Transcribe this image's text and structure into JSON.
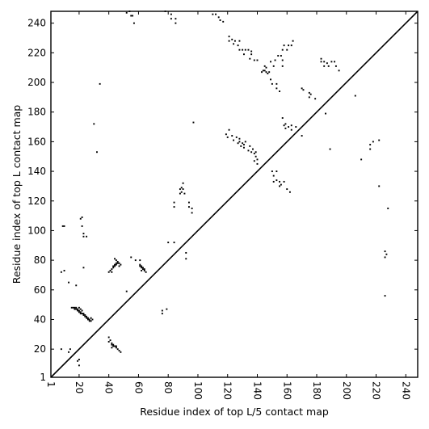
{
  "chart_data": {
    "type": "scatter",
    "title": "",
    "xlabel": "Residue index of top L/5 contact map",
    "ylabel": "Residue index of top L contact map",
    "xlim": [
      1,
      248
    ],
    "ylim": [
      1,
      248
    ],
    "xticks": [
      1,
      20,
      40,
      60,
      80,
      100,
      120,
      140,
      160,
      180,
      200,
      220,
      240
    ],
    "xtick_labels": [
      "1",
      "20",
      "40",
      "60",
      "80",
      "100",
      "120",
      "140",
      "160",
      "180",
      "200",
      "220",
      "240"
    ],
    "yticks": [
      1,
      20,
      40,
      60,
      80,
      100,
      120,
      140,
      160,
      180,
      200,
      220,
      240
    ],
    "ytick_labels": [
      "1",
      "20",
      "40",
      "60",
      "80",
      "100",
      "120",
      "140",
      "160",
      "180",
      "200",
      "220",
      "240"
    ],
    "diagonal": true,
    "grid": false,
    "marker_color": "#000000",
    "series": [
      {
        "values_note": "",
        "points": [
          [
            8,
            72
          ],
          [
            10,
            73
          ],
          [
            9,
            103
          ],
          [
            10,
            103
          ],
          [
            13,
            65
          ],
          [
            18,
            63
          ],
          [
            19,
            12
          ],
          [
            20,
            9
          ],
          [
            20,
            13
          ],
          [
            13,
            18
          ],
          [
            14,
            20
          ],
          [
            8,
            20
          ],
          [
            15,
            48
          ],
          [
            16,
            48
          ],
          [
            17,
            48
          ],
          [
            18,
            48
          ],
          [
            17,
            47
          ],
          [
            18,
            47
          ],
          [
            19,
            47
          ],
          [
            19,
            46
          ],
          [
            20,
            46
          ],
          [
            20,
            45
          ],
          [
            21,
            45
          ],
          [
            21,
            44
          ],
          [
            22,
            44
          ],
          [
            23,
            44
          ],
          [
            23,
            43
          ],
          [
            24,
            43
          ],
          [
            24,
            42
          ],
          [
            25,
            42
          ],
          [
            25,
            41
          ],
          [
            26,
            41
          ],
          [
            26,
            40
          ],
          [
            27,
            40
          ],
          [
            27,
            39
          ],
          [
            28,
            39
          ],
          [
            29,
            40
          ],
          [
            28,
            41
          ],
          [
            22,
            46
          ],
          [
            21,
            47
          ],
          [
            20,
            48
          ],
          [
            21,
            108
          ],
          [
            22,
            109
          ],
          [
            22,
            103
          ],
          [
            23,
            98
          ],
          [
            23,
            96
          ],
          [
            25,
            96
          ],
          [
            23,
            75
          ],
          [
            30,
            172
          ],
          [
            32,
            153
          ],
          [
            34,
            199
          ],
          [
            40,
            72
          ],
          [
            41,
            73
          ],
          [
            42,
            74
          ],
          [
            42,
            72
          ],
          [
            43,
            75
          ],
          [
            43,
            76
          ],
          [
            44,
            76
          ],
          [
            44,
            77
          ],
          [
            45,
            77
          ],
          [
            45,
            78
          ],
          [
            46,
            78
          ],
          [
            47,
            78
          ],
          [
            46,
            79
          ],
          [
            45,
            80
          ],
          [
            44,
            81
          ],
          [
            47,
            76
          ],
          [
            48,
            77
          ],
          [
            40,
            25
          ],
          [
            40,
            28
          ],
          [
            41,
            26
          ],
          [
            42,
            24
          ],
          [
            42,
            23
          ],
          [
            43,
            23
          ],
          [
            43,
            22
          ],
          [
            44,
            22
          ],
          [
            45,
            22
          ],
          [
            45,
            21
          ],
          [
            46,
            20
          ],
          [
            47,
            19
          ],
          [
            48,
            18
          ],
          [
            42,
            21
          ],
          [
            52,
            59
          ],
          [
            55,
            82
          ],
          [
            58,
            80
          ],
          [
            61,
            80
          ],
          [
            61,
            77
          ],
          [
            61,
            76
          ],
          [
            62,
            76
          ],
          [
            62,
            75
          ],
          [
            63,
            75
          ],
          [
            63,
            74
          ],
          [
            64,
            73
          ],
          [
            64,
            74
          ],
          [
            65,
            72
          ],
          [
            62,
            73
          ],
          [
            52,
            247
          ],
          [
            54,
            248
          ],
          [
            55,
            245
          ],
          [
            56,
            245
          ],
          [
            57,
            240
          ],
          [
            76,
            44
          ],
          [
            76,
            46
          ],
          [
            79,
            47
          ],
          [
            78,
            248
          ],
          [
            82,
            246
          ],
          [
            82,
            243
          ],
          [
            85,
            240
          ],
          [
            85,
            243
          ],
          [
            80,
            92
          ],
          [
            84,
            92
          ],
          [
            84,
            116
          ],
          [
            84,
            119
          ],
          [
            88,
            125
          ],
          [
            88,
            128
          ],
          [
            89,
            129
          ],
          [
            89,
            126
          ],
          [
            90,
            132
          ],
          [
            90,
            128
          ],
          [
            91,
            125
          ],
          [
            92,
            81
          ],
          [
            92,
            85
          ],
          [
            94,
            116
          ],
          [
            94,
            119
          ],
          [
            96,
            115
          ],
          [
            96,
            112
          ],
          [
            97,
            173
          ],
          [
            110,
            246
          ],
          [
            112,
            246
          ],
          [
            114,
            244
          ],
          [
            115,
            242
          ],
          [
            117,
            241
          ],
          [
            121,
            228
          ],
          [
            121,
            231
          ],
          [
            123,
            229
          ],
          [
            124,
            226
          ],
          [
            125,
            228
          ],
          [
            127,
            225
          ],
          [
            128,
            228
          ],
          [
            128,
            222
          ],
          [
            130,
            222
          ],
          [
            131,
            219
          ],
          [
            132,
            222
          ],
          [
            134,
            222
          ],
          [
            135,
            216
          ],
          [
            136,
            219
          ],
          [
            136,
            221
          ],
          [
            138,
            215
          ],
          [
            140,
            215
          ],
          [
            143,
            207
          ],
          [
            144,
            208
          ],
          [
            145,
            208
          ],
          [
            146,
            207
          ],
          [
            145,
            211
          ],
          [
            146,
            210
          ],
          [
            147,
            206
          ],
          [
            148,
            207
          ],
          [
            149,
            214
          ],
          [
            149,
            202
          ],
          [
            150,
            199
          ],
          [
            151,
            211
          ],
          [
            152,
            215
          ],
          [
            153,
            199
          ],
          [
            153,
            196
          ],
          [
            154,
            218
          ],
          [
            155,
            194
          ],
          [
            156,
            218
          ],
          [
            157,
            215
          ],
          [
            157,
            211
          ],
          [
            157,
            222
          ],
          [
            158,
            225
          ],
          [
            160,
            222
          ],
          [
            161,
            225
          ],
          [
            163,
            225
          ],
          [
            164,
            228
          ],
          [
            119,
            165
          ],
          [
            120,
            163
          ],
          [
            121,
            168
          ],
          [
            123,
            164
          ],
          [
            124,
            161
          ],
          [
            126,
            163
          ],
          [
            127,
            159
          ],
          [
            128,
            162
          ],
          [
            128,
            160
          ],
          [
            129,
            157
          ],
          [
            130,
            159
          ],
          [
            131,
            156
          ],
          [
            131,
            158
          ],
          [
            132,
            160
          ],
          [
            134,
            154
          ],
          [
            135,
            157
          ],
          [
            136,
            153
          ],
          [
            137,
            155
          ],
          [
            138,
            152
          ],
          [
            138,
            147
          ],
          [
            139,
            153
          ],
          [
            139,
            150
          ],
          [
            140,
            148
          ],
          [
            140,
            145
          ],
          [
            150,
            140
          ],
          [
            151,
            137
          ],
          [
            151,
            133
          ],
          [
            153,
            140
          ],
          [
            153,
            134
          ],
          [
            155,
            130
          ],
          [
            155,
            133
          ],
          [
            156,
            131
          ],
          [
            157,
            176
          ],
          [
            158,
            133
          ],
          [
            158,
            171
          ],
          [
            159,
            169
          ],
          [
            159,
            172
          ],
          [
            160,
            128
          ],
          [
            161,
            170
          ],
          [
            162,
            126
          ],
          [
            163,
            168
          ],
          [
            163,
            171
          ],
          [
            166,
            170
          ],
          [
            170,
            164
          ],
          [
            170,
            196
          ],
          [
            171,
            195
          ],
          [
            175,
            193
          ],
          [
            175,
            190
          ],
          [
            176,
            192
          ],
          [
            179,
            189
          ],
          [
            183,
            214
          ],
          [
            183,
            216
          ],
          [
            185,
            214
          ],
          [
            185,
            211
          ],
          [
            186,
            179
          ],
          [
            187,
            213
          ],
          [
            188,
            211
          ],
          [
            189,
            155
          ],
          [
            190,
            214
          ],
          [
            192,
            214
          ],
          [
            193,
            211
          ],
          [
            195,
            208
          ],
          [
            206,
            191
          ],
          [
            210,
            148
          ],
          [
            216,
            158
          ],
          [
            216,
            155
          ],
          [
            218,
            160
          ],
          [
            222,
            161
          ],
          [
            222,
            130
          ],
          [
            226,
            56
          ],
          [
            226,
            82
          ],
          [
            226,
            86
          ],
          [
            227,
            84
          ],
          [
            228,
            115
          ]
        ]
      }
    ]
  }
}
